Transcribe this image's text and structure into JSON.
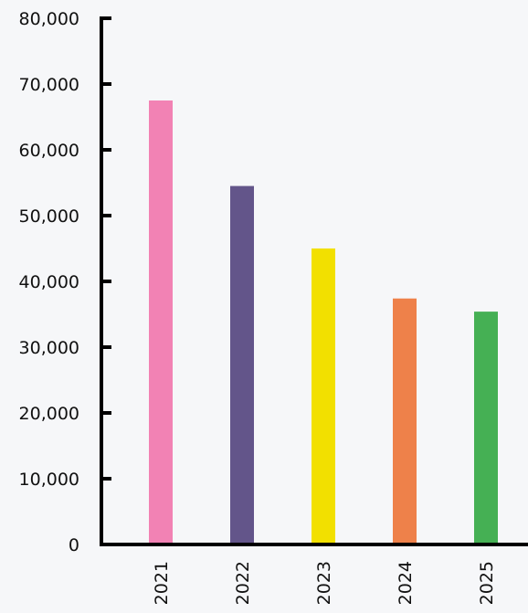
{
  "chart_data": {
    "type": "bar",
    "title": "",
    "xlabel": "",
    "ylabel": "",
    "categories": [
      "2021",
      "2022",
      "2023",
      "2024",
      "2025"
    ],
    "values": [
      67500,
      54500,
      45000,
      37400,
      35400
    ],
    "colors": [
      "#f282b4",
      "#63558a",
      "#f2e000",
      "#ee814a",
      "#45b054"
    ],
    "ylim": [
      0,
      80000
    ],
    "yticks": [
      0,
      10000,
      20000,
      30000,
      40000,
      50000,
      60000,
      70000,
      80000
    ],
    "ytick_labels": [
      "0",
      "10,000",
      "20,000",
      "30,000",
      "40,000",
      "50,000",
      "60,000",
      "70,000",
      "80,000"
    ],
    "grid": false,
    "legend": "none"
  }
}
